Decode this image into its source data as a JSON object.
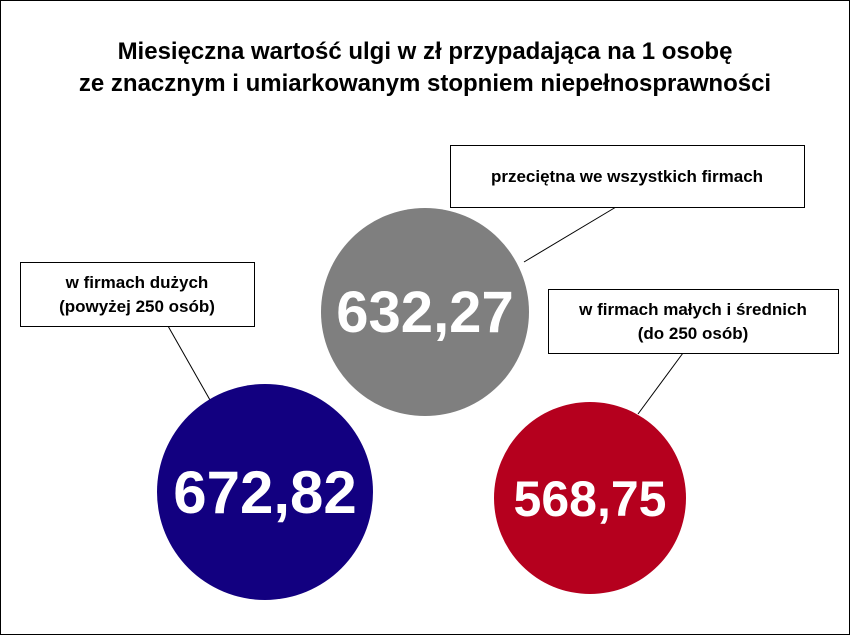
{
  "chart_data": {
    "type": "bubble",
    "title": [
      "Miesięczna wartość ulgi w zł przypadająca na 1 osobę",
      "ze znacznym i umiarkowanym stopniem niepełnosprawności"
    ],
    "unit": "zł",
    "items": [
      {
        "id": "average",
        "label": [
          "przeciętna we wszystkich firmach"
        ],
        "value": 632.27,
        "value_label": "632,27",
        "color": "#7f7f7f"
      },
      {
        "id": "large",
        "label": [
          "w firmach dużych",
          "(powyżej 250 osób)"
        ],
        "value": 672.82,
        "value_label": "672,82",
        "color": "#120080"
      },
      {
        "id": "small-medium",
        "label": [
          "w firmach małych i średnich",
          "(do 250 osób)"
        ],
        "value": 568.75,
        "value_label": "568,75",
        "color": "#b5001e"
      }
    ]
  }
}
